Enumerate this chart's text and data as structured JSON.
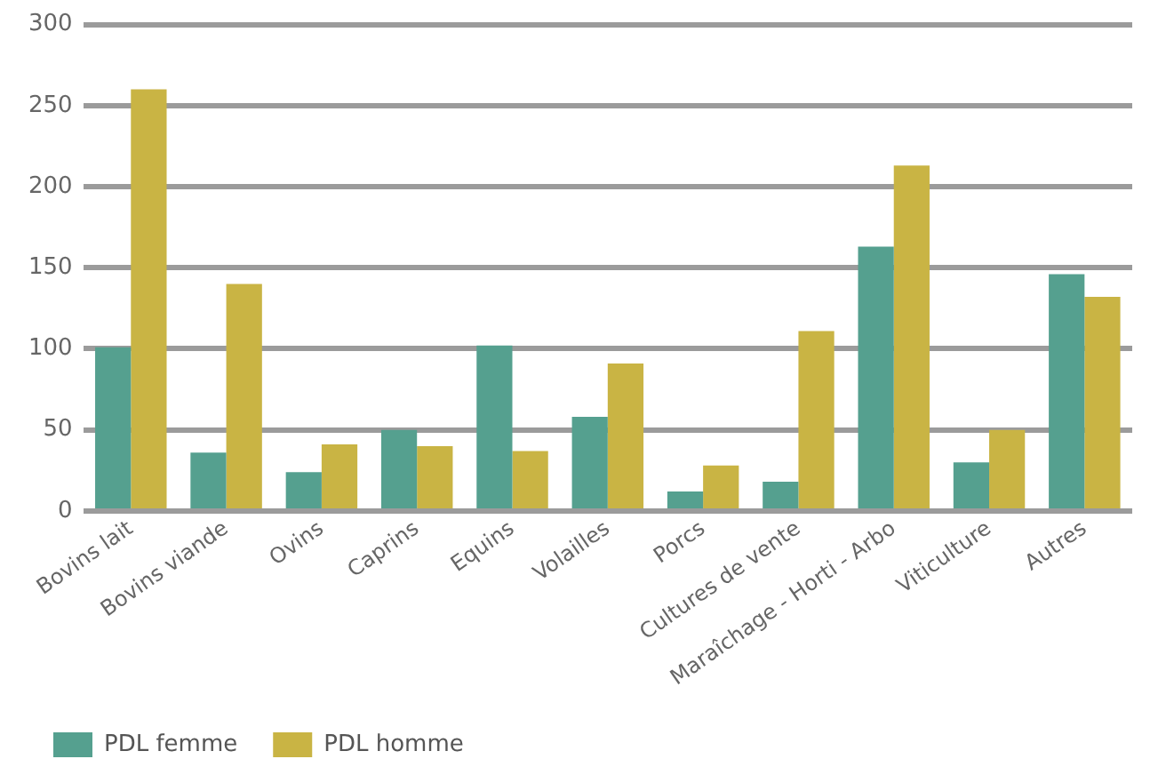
{
  "chart_data": {
    "type": "bar",
    "categories": [
      "Bovins lait",
      "Bovins viande",
      "Ovins",
      "Caprins",
      "Equins",
      "Volailles",
      "Porcs",
      "Cultures de vente",
      "Maraîchage - Horti - Arbo",
      "Viticulture",
      "Autres"
    ],
    "series": [
      {
        "name": "PDL femme",
        "color": "#55a08f",
        "values": [
          101,
          36,
          24,
          50,
          102,
          58,
          12,
          18,
          163,
          30,
          146
        ]
      },
      {
        "name": "PDL homme",
        "color": "#c9b444",
        "values": [
          260,
          140,
          41,
          40,
          37,
          91,
          28,
          111,
          213,
          50,
          132
        ]
      }
    ],
    "ylim": [
      0,
      300
    ],
    "yticks": [
      0,
      50,
      100,
      150,
      200,
      250,
      300
    ],
    "grid": "y",
    "legend": "bottom left"
  }
}
